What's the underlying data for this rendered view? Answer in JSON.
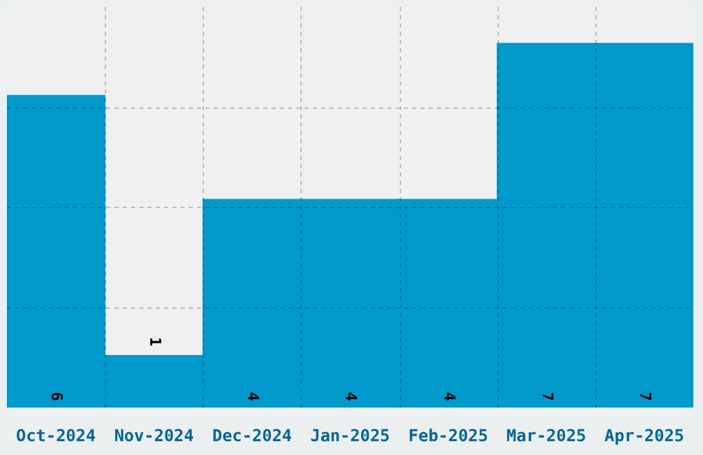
{
  "chart_data": {
    "type": "bar",
    "categories": [
      "Oct-2024",
      "Nov-2024",
      "Dec-2024",
      "Jan-2025",
      "Feb-2025",
      "Mar-2025",
      "Apr-2025"
    ],
    "values": [
      6,
      1,
      4,
      4,
      4,
      7,
      7
    ],
    "color": "#0099cc",
    "data_labels": true,
    "grid": true
  }
}
